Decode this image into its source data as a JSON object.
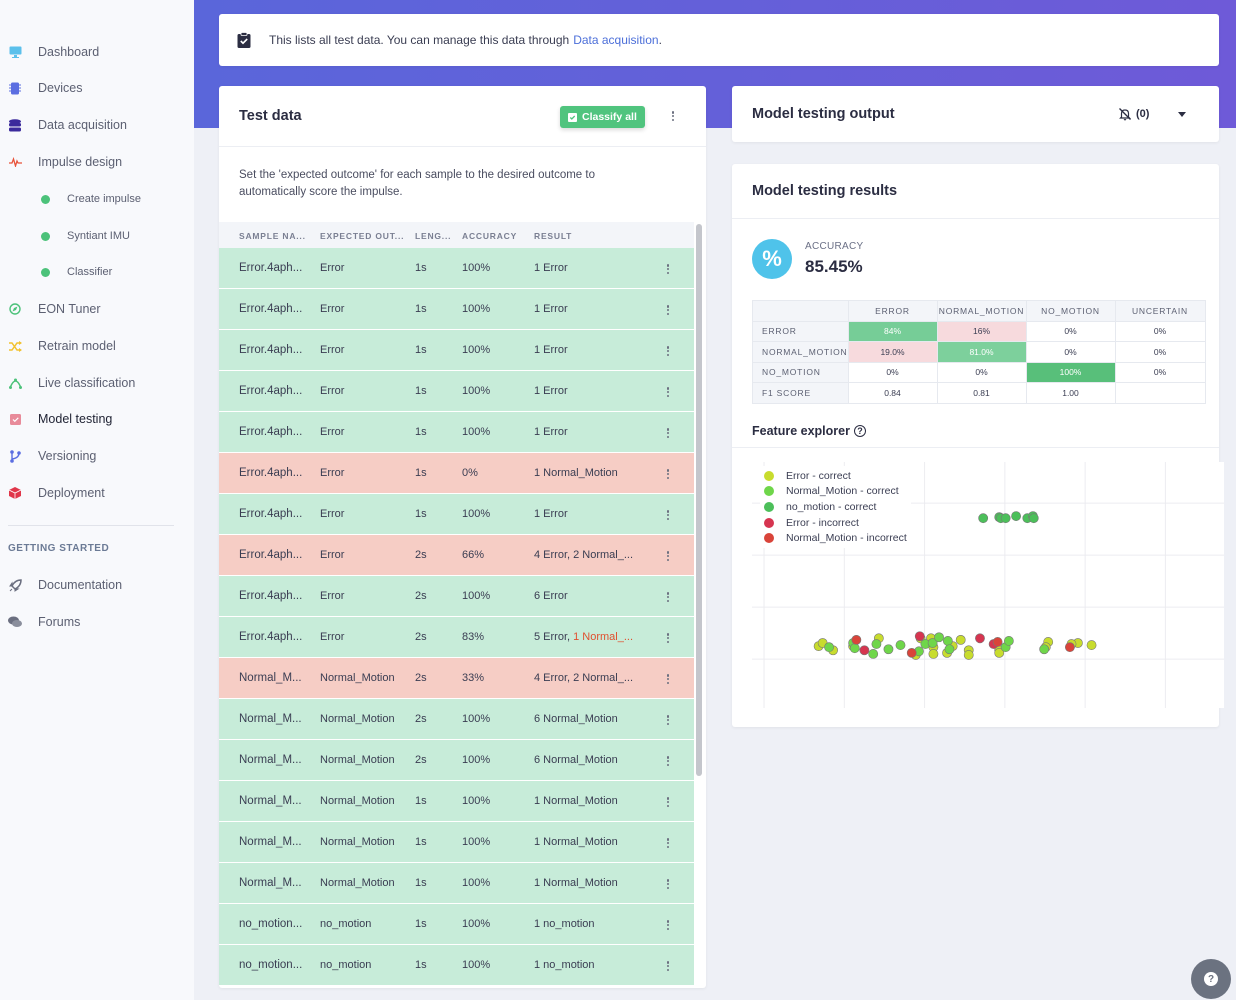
{
  "sidebar": {
    "items": [
      {
        "label": "Dashboard",
        "icon": "monitor-icon",
        "color": "#5bc0eb"
      },
      {
        "label": "Devices",
        "icon": "chip-icon",
        "color": "#5b6ee1"
      },
      {
        "label": "Data acquisition",
        "icon": "database-icon",
        "color": "#3b2a9c"
      },
      {
        "label": "Impulse design",
        "icon": "pulse-icon",
        "color": "#e8533a"
      },
      {
        "label": "Create impulse",
        "icon": "dot-icon",
        "color": "#4cc27a"
      },
      {
        "label": "Syntiant IMU",
        "icon": "dot-icon",
        "color": "#4cc27a"
      },
      {
        "label": "Classifier",
        "icon": "dot-icon",
        "color": "#4cc27a"
      },
      {
        "label": "EON Tuner",
        "icon": "compass-icon",
        "color": "#4cc27a"
      },
      {
        "label": "Retrain model",
        "icon": "shuffle-icon",
        "color": "#f2c230"
      },
      {
        "label": "Live classification",
        "icon": "live-icon",
        "color": "#4cc27a"
      },
      {
        "label": "Model testing",
        "icon": "clipboard-check-icon",
        "color": "#e88b9a"
      },
      {
        "label": "Versioning",
        "icon": "branch-icon",
        "color": "#5b6ee1"
      },
      {
        "label": "Deployment",
        "icon": "box-icon",
        "color": "#e0364a"
      }
    ],
    "section_title": "GETTING STARTED",
    "extra_items": [
      {
        "label": "Documentation",
        "icon": "rocket-icon"
      },
      {
        "label": "Forums",
        "icon": "chat-icon"
      }
    ]
  },
  "banner": {
    "text": "This lists all test data. You can manage this data through",
    "link": "Data acquisition",
    "suffix": "."
  },
  "test_data": {
    "title": "Test data",
    "classify_all": "Classify all",
    "description": "Set the 'expected outcome' for each sample to the desired outcome to automatically score the impulse.",
    "columns": [
      "SAMPLE NA...",
      "EXPECTED OUT...",
      "LENG...",
      "ACCURACY",
      "RESULT"
    ],
    "rows": [
      {
        "name": "Error.4aph...",
        "expected": "Error",
        "length": "1s",
        "accuracy": "100%",
        "result": "1 Error",
        "result_extra": "",
        "status": "ok"
      },
      {
        "name": "Error.4aph...",
        "expected": "Error",
        "length": "1s",
        "accuracy": "100%",
        "result": "1 Error",
        "result_extra": "",
        "status": "ok"
      },
      {
        "name": "Error.4aph...",
        "expected": "Error",
        "length": "1s",
        "accuracy": "100%",
        "result": "1 Error",
        "result_extra": "",
        "status": "ok"
      },
      {
        "name": "Error.4aph...",
        "expected": "Error",
        "length": "1s",
        "accuracy": "100%",
        "result": "1 Error",
        "result_extra": "",
        "status": "ok"
      },
      {
        "name": "Error.4aph...",
        "expected": "Error",
        "length": "1s",
        "accuracy": "100%",
        "result": "1 Error",
        "result_extra": "",
        "status": "ok"
      },
      {
        "name": "Error.4aph...",
        "expected": "Error",
        "length": "1s",
        "accuracy": "0%",
        "result": "1 Normal_Motion",
        "result_extra": "",
        "status": "bad"
      },
      {
        "name": "Error.4aph...",
        "expected": "Error",
        "length": "1s",
        "accuracy": "100%",
        "result": "1 Error",
        "result_extra": "",
        "status": "ok"
      },
      {
        "name": "Error.4aph...",
        "expected": "Error",
        "length": "2s",
        "accuracy": "66%",
        "result": "4 Error, 2 Normal_...",
        "result_extra": "",
        "status": "bad"
      },
      {
        "name": "Error.4aph...",
        "expected": "Error",
        "length": "2s",
        "accuracy": "100%",
        "result": "6 Error",
        "result_extra": "",
        "status": "ok"
      },
      {
        "name": "Error.4aph...",
        "expected": "Error",
        "length": "2s",
        "accuracy": "83%",
        "result": "5 Error, ",
        "result_extra": "1 Normal_...",
        "status": "ok"
      },
      {
        "name": "Normal_M...",
        "expected": "Normal_Motion",
        "length": "2s",
        "accuracy": "33%",
        "result": "4 Error, 2 Normal_...",
        "result_extra": "",
        "status": "bad"
      },
      {
        "name": "Normal_M...",
        "expected": "Normal_Motion",
        "length": "2s",
        "accuracy": "100%",
        "result": "6 Normal_Motion",
        "result_extra": "",
        "status": "ok"
      },
      {
        "name": "Normal_M...",
        "expected": "Normal_Motion",
        "length": "2s",
        "accuracy": "100%",
        "result": "6 Normal_Motion",
        "result_extra": "",
        "status": "ok"
      },
      {
        "name": "Normal_M...",
        "expected": "Normal_Motion",
        "length": "1s",
        "accuracy": "100%",
        "result": "1 Normal_Motion",
        "result_extra": "",
        "status": "ok"
      },
      {
        "name": "Normal_M...",
        "expected": "Normal_Motion",
        "length": "1s",
        "accuracy": "100%",
        "result": "1 Normal_Motion",
        "result_extra": "",
        "status": "ok"
      },
      {
        "name": "Normal_M...",
        "expected": "Normal_Motion",
        "length": "1s",
        "accuracy": "100%",
        "result": "1 Normal_Motion",
        "result_extra": "",
        "status": "ok"
      },
      {
        "name": "no_motion...",
        "expected": "no_motion",
        "length": "1s",
        "accuracy": "100%",
        "result": "1 no_motion",
        "result_extra": "",
        "status": "ok"
      },
      {
        "name": "no_motion...",
        "expected": "no_motion",
        "length": "1s",
        "accuracy": "100%",
        "result": "1 no_motion",
        "result_extra": "",
        "status": "ok"
      }
    ]
  },
  "output": {
    "title": "Model testing output",
    "notifications": "(0)"
  },
  "results": {
    "title": "Model testing results",
    "accuracy_label": "ACCURACY",
    "accuracy_value": "85.45%",
    "confusion": {
      "columns": [
        "ERROR",
        "NORMAL_MOTION",
        "NO_MOTION",
        "UNCERTAIN"
      ],
      "rows": [
        {
          "label": "ERROR",
          "cells": [
            "84%",
            "16%",
            "0%",
            "0%"
          ],
          "styles": [
            "g",
            "r",
            "",
            ""
          ]
        },
        {
          "label": "NORMAL_MOTION",
          "cells": [
            "19.0%",
            "81.0%",
            "0%",
            "0%"
          ],
          "styles": [
            "r",
            "g2",
            "",
            ""
          ]
        },
        {
          "label": "NO_MOTION",
          "cells": [
            "0%",
            "0%",
            "100%",
            "0%"
          ],
          "styles": [
            "",
            "",
            "g3",
            ""
          ]
        },
        {
          "label": "F1 SCORE",
          "cells": [
            "0.84",
            "0.81",
            "1.00",
            ""
          ],
          "styles": [
            "",
            "",
            "",
            ""
          ]
        }
      ]
    },
    "feature_explorer": "Feature explorer",
    "help_glyph": "?"
  },
  "chart_data": {
    "type": "scatter",
    "title": "Feature explorer",
    "xlim": [
      -0.15,
      5.73
    ],
    "ylim": [
      -0.94,
      3.79
    ],
    "grid": true,
    "legend_position": "top-left",
    "series": [
      {
        "name": "Error - correct",
        "color": "#c8dc2e",
        "points": [
          [
            0.68,
            0.25
          ],
          [
            0.73,
            0.31
          ],
          [
            0.86,
            0.17
          ],
          [
            1.11,
            0.25
          ],
          [
            1.43,
            0.4
          ],
          [
            1.89,
            0.08
          ],
          [
            1.95,
            0.4
          ],
          [
            2.08,
            0.4
          ],
          [
            2.11,
            0.23
          ],
          [
            2.11,
            0.1
          ],
          [
            2.28,
            0.12
          ],
          [
            2.35,
            0.25
          ],
          [
            2.45,
            0.37
          ],
          [
            2.55,
            0.17
          ],
          [
            2.55,
            0.08
          ],
          [
            2.93,
            0.17
          ],
          [
            2.93,
            0.12
          ],
          [
            3.54,
            0.33
          ],
          [
            3.51,
            0.23
          ],
          [
            3.91,
            0.31
          ],
          [
            4.08,
            0.27
          ],
          [
            3.83,
            0.29
          ]
        ]
      },
      {
        "name": "Normal_Motion - correct",
        "color": "#6fd64a",
        "points": [
          [
            0.81,
            0.23
          ],
          [
            1.11,
            0.31
          ],
          [
            1.13,
            0.21
          ],
          [
            1.36,
            0.1
          ],
          [
            1.4,
            0.29
          ],
          [
            1.55,
            0.19
          ],
          [
            1.7,
            0.27
          ],
          [
            1.93,
            0.15
          ],
          [
            2.01,
            0.29
          ],
          [
            2.1,
            0.31
          ],
          [
            2.18,
            0.42
          ],
          [
            2.29,
            0.35
          ],
          [
            2.31,
            0.19
          ],
          [
            3.01,
            0.23
          ],
          [
            3.05,
            0.35
          ],
          [
            3.49,
            0.19
          ]
        ]
      },
      {
        "name": "no_motion - correct",
        "color": "#4cbf5a",
        "points": [
          [
            2.73,
            2.71
          ],
          [
            2.93,
            2.73
          ],
          [
            2.95,
            2.71
          ],
          [
            3.01,
            2.71
          ],
          [
            3.14,
            2.75
          ],
          [
            3.28,
            2.71
          ],
          [
            3.35,
            2.75
          ],
          [
            3.36,
            2.71
          ]
        ]
      },
      {
        "name": "Error - incorrect",
        "color": "#d63550",
        "points": [
          [
            1.25,
            0.17
          ],
          [
            1.94,
            0.44
          ],
          [
            2.69,
            0.4
          ],
          [
            2.86,
            0.29
          ]
        ]
      },
      {
        "name": "Normal_Motion - incorrect",
        "color": "#d9443a",
        "points": [
          [
            1.15,
            0.37
          ],
          [
            1.84,
            0.12
          ],
          [
            2.91,
            0.33
          ],
          [
            3.81,
            0.23
          ]
        ]
      }
    ]
  }
}
